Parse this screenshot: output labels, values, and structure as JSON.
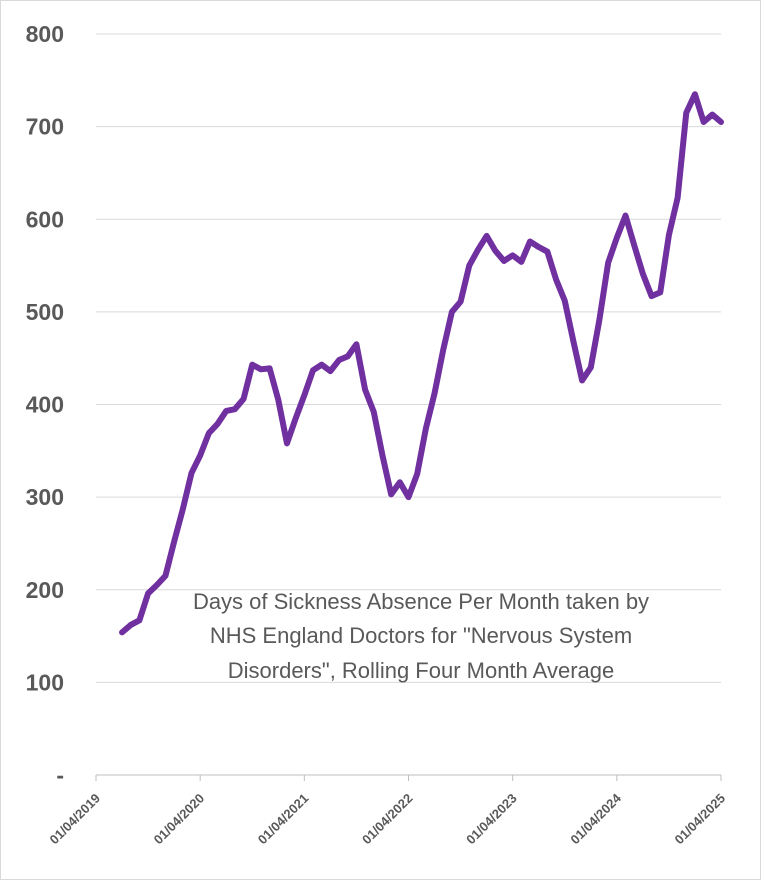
{
  "chart_data": {
    "type": "line",
    "title_lines": [
      "Days of Sickness Absence Per Month taken by",
      "NHS England Doctors for \"Nervous System",
      "Disorders\", Rolling Four Month Average"
    ],
    "xlabel": "",
    "ylabel": "",
    "ylim": [
      0,
      800
    ],
    "y_ticks": [
      {
        "value": 0,
        "label": "-"
      },
      {
        "value": 100,
        "label": "100"
      },
      {
        "value": 200,
        "label": "200"
      },
      {
        "value": 300,
        "label": "300"
      },
      {
        "value": 400,
        "label": "400"
      },
      {
        "value": 500,
        "label": "500"
      },
      {
        "value": 600,
        "label": "600"
      },
      {
        "value": 700,
        "label": "700"
      },
      {
        "value": 800,
        "label": "800"
      }
    ],
    "x_start": "2019-04",
    "x_end": "2025-04",
    "x_ticks": [
      {
        "month_index": 0,
        "label": "01/04/2019"
      },
      {
        "month_index": 12,
        "label": "01/04/2020"
      },
      {
        "month_index": 24,
        "label": "01/04/2021"
      },
      {
        "month_index": 36,
        "label": "01/04/2022"
      },
      {
        "month_index": 48,
        "label": "01/04/2023"
      },
      {
        "month_index": 60,
        "label": "01/04/2024"
      },
      {
        "month_index": 72,
        "label": "01/04/2025"
      }
    ],
    "grid": true,
    "series": [
      {
        "name": "Rolling four month average",
        "color": "#7030a0",
        "x_month_index": [
          3,
          4,
          5,
          6,
          7,
          8,
          9,
          10,
          11,
          12,
          13,
          14,
          15,
          16,
          17,
          18,
          19,
          20,
          21,
          22,
          23,
          24,
          25,
          26,
          27,
          28,
          29,
          30,
          31,
          32,
          33,
          34,
          35,
          36,
          37,
          38,
          39,
          40,
          41,
          42,
          43,
          44,
          45,
          46,
          47,
          48,
          49,
          50,
          51,
          52,
          53,
          54,
          55,
          56,
          57,
          58,
          59,
          60,
          61,
          62,
          63,
          64,
          65,
          66,
          67,
          68,
          69,
          70,
          71,
          72
        ],
        "values": [
          154,
          162,
          167,
          196,
          205,
          215,
          252,
          287,
          326,
          345,
          369,
          379,
          393,
          395,
          406,
          443,
          438,
          439,
          405,
          358,
          385,
          410,
          437,
          443,
          436,
          448,
          452,
          465,
          416,
          392,
          345,
          303,
          316,
          300,
          325,
          374,
          412,
          459,
          500,
          511,
          550,
          567,
          582,
          566,
          555,
          561,
          554,
          576,
          570,
          565,
          535,
          512,
          468,
          426,
          440,
          492,
          553,
          580,
          604,
          572,
          541,
          517,
          521,
          583,
          623,
          715,
          735,
          705,
          713,
          705
        ]
      }
    ]
  }
}
